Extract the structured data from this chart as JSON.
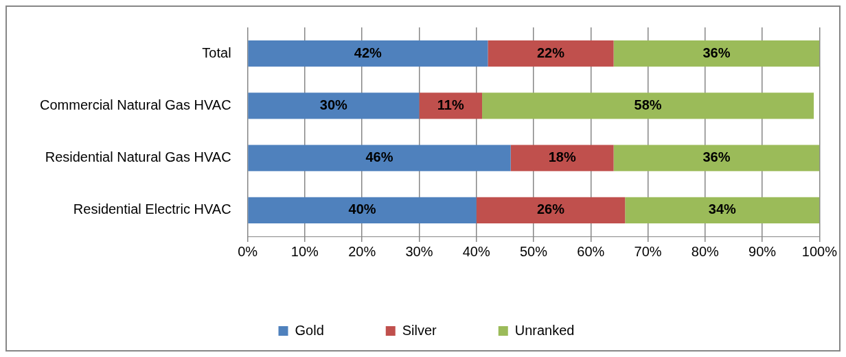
{
  "chart_data": {
    "type": "bar",
    "orientation": "horizontal",
    "stacked": true,
    "categories": [
      "Total",
      "Commercial Natural Gas HVAC",
      "Residential Natural Gas HVAC",
      "Residential Electric HVAC"
    ],
    "series": [
      {
        "name": "Gold",
        "color": "#4f81bd",
        "values": [
          42,
          30,
          46,
          40
        ],
        "value_labels": [
          "42%",
          "30%",
          "46%",
          "40%"
        ]
      },
      {
        "name": "Silver",
        "color": "#c0504d",
        "values": [
          22,
          11,
          18,
          26
        ],
        "value_labels": [
          "22%",
          "11%",
          "18%",
          "26%"
        ]
      },
      {
        "name": "Unranked",
        "color": "#9bbb59",
        "values": [
          36,
          58,
          36,
          34
        ],
        "value_labels": [
          "36%",
          "58%",
          "36%",
          "34%"
        ]
      }
    ],
    "xlim": [
      0,
      100
    ],
    "xticks": [
      {
        "value": 0,
        "label": "0%"
      },
      {
        "value": 10,
        "label": "10%"
      },
      {
        "value": 20,
        "label": "20%"
      },
      {
        "value": 30,
        "label": "30%"
      },
      {
        "value": 40,
        "label": "40%"
      },
      {
        "value": 50,
        "label": "50%"
      },
      {
        "value": 60,
        "label": "60%"
      },
      {
        "value": 70,
        "label": "70%"
      },
      {
        "value": 80,
        "label": "80%"
      },
      {
        "value": 90,
        "label": "90%"
      },
      {
        "value": 100,
        "label": "100%"
      }
    ],
    "grid": "x",
    "legend": "bottom"
  }
}
